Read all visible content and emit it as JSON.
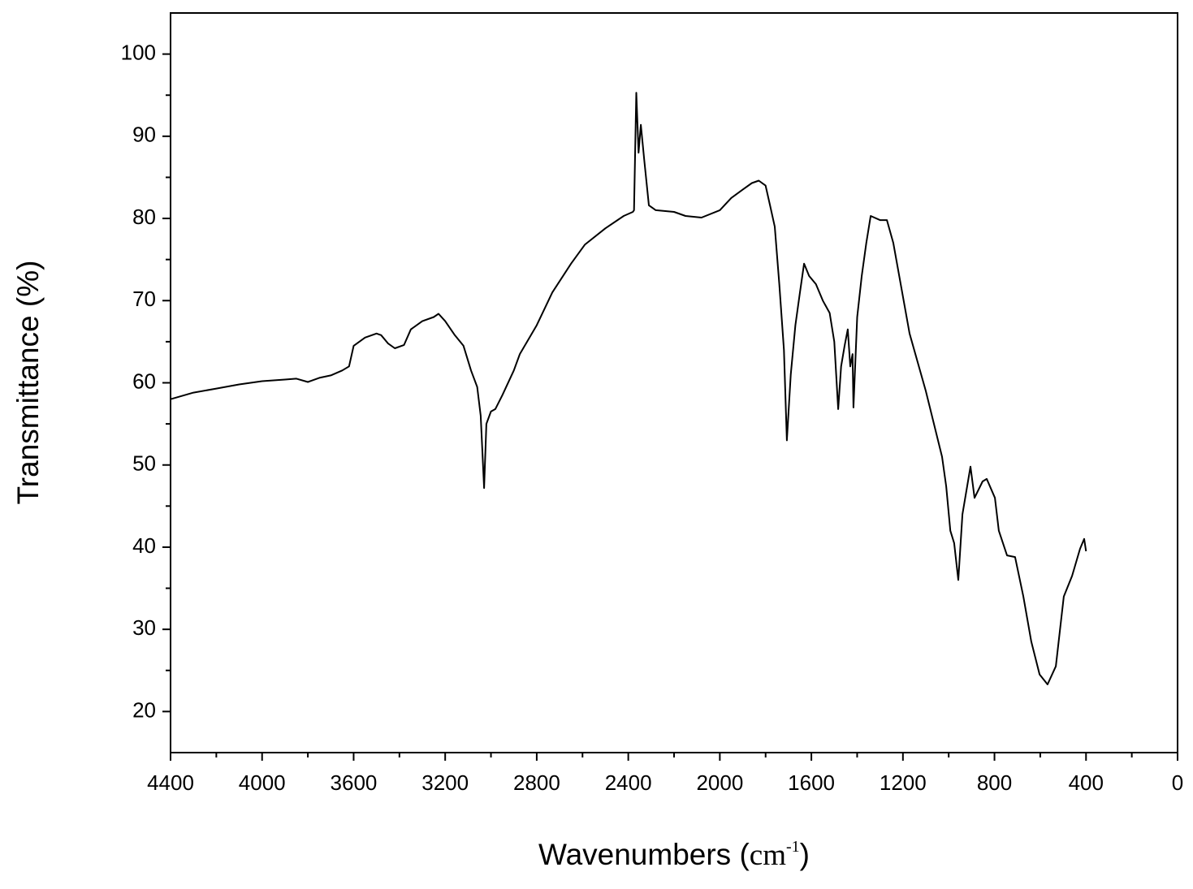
{
  "chart_data": {
    "type": "line",
    "ylabel": "Transmittance (%)",
    "xlabel_parts": [
      "Wavenumbers (",
      "cm",
      "-1",
      ")"
    ],
    "xlim": [
      4400,
      0
    ],
    "ylim": [
      15,
      105
    ],
    "xticks": [
      4400,
      4000,
      3600,
      3200,
      2800,
      2400,
      2000,
      1600,
      1200,
      800,
      400,
      0
    ],
    "xminorticks": [
      4200,
      3800,
      3400,
      3000,
      2600,
      2200,
      1800,
      1400,
      1000,
      600,
      200
    ],
    "yticks": [
      20,
      30,
      40,
      50,
      60,
      70,
      80,
      90,
      100
    ],
    "yminorticks": [
      25,
      35,
      45,
      55,
      65,
      75,
      85,
      95
    ],
    "color": "#000000",
    "x": [
      4400,
      4300,
      4200,
      4100,
      4000,
      3900,
      3850,
      3800,
      3750,
      3700,
      3650,
      3620,
      3600,
      3550,
      3500,
      3480,
      3450,
      3420,
      3380,
      3350,
      3300,
      3250,
      3229,
      3200,
      3158,
      3120,
      3087,
      3060,
      3045,
      3030,
      3020,
      3000,
      2981,
      2950,
      2900,
      2874,
      2800,
      2732,
      2650,
      2590,
      2500,
      2420,
      2380,
      2375,
      2365,
      2355,
      2345,
      2330,
      2310,
      2280,
      2200,
      2150,
      2080,
      2000,
      1950,
      1900,
      1860,
      1830,
      1800,
      1780,
      1760,
      1740,
      1720,
      1707,
      1690,
      1670,
      1650,
      1632,
      1610,
      1580,
      1550,
      1520,
      1500,
      1483,
      1470,
      1455,
      1441,
      1430,
      1420,
      1416,
      1400,
      1380,
      1360,
      1341,
      1300,
      1270,
      1242,
      1171,
      1100,
      1029,
      1011,
      993,
      976,
      958,
      940,
      905,
      887,
      852,
      834,
      798,
      781,
      745,
      710,
      674,
      639,
      603,
      568,
      532,
      497,
      461,
      426,
      408,
      400
    ],
    "values": [
      58,
      58.8,
      59.3,
      59.8,
      60.2,
      60.4,
      60.5,
      60.1,
      60.6,
      60.9,
      61.5,
      62,
      64.5,
      65.5,
      66,
      65.8,
      64.8,
      64.2,
      64.6,
      66.5,
      67.5,
      68,
      68.4,
      67.5,
      65.8,
      64.5,
      61.5,
      59.5,
      56,
      47.2,
      55,
      56.5,
      56.8,
      58.5,
      61.5,
      63.5,
      67,
      71,
      74.5,
      76.8,
      78.8,
      80.3,
      80.8,
      81,
      95.3,
      88,
      91.4,
      87,
      81.6,
      81,
      80.8,
      80.3,
      80.1,
      81,
      82.5,
      83.5,
      84.3,
      84.6,
      84,
      81.5,
      79,
      72,
      64,
      53,
      61,
      67,
      71,
      74.5,
      73,
      72,
      70,
      68.5,
      65,
      56.8,
      62,
      64.5,
      66.5,
      62,
      63.5,
      57,
      68,
      73,
      77,
      80.3,
      79.8,
      79.8,
      77,
      66,
      59,
      51,
      47.4,
      42,
      40.5,
      36,
      44,
      49.8,
      46,
      48,
      48.3,
      46,
      42,
      39,
      38.8,
      34,
      28.5,
      24.5,
      23.3,
      25.5,
      34,
      36.5,
      39.8,
      41,
      39.5
    ]
  }
}
